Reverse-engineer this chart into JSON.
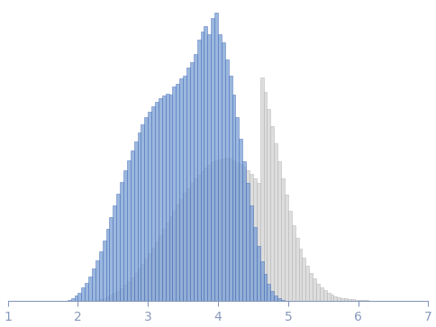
{
  "blue_bin_edges": [
    1.8,
    1.85,
    1.9,
    1.95,
    2.0,
    2.05,
    2.1,
    2.15,
    2.2,
    2.25,
    2.3,
    2.35,
    2.4,
    2.45,
    2.5,
    2.55,
    2.6,
    2.65,
    2.7,
    2.75,
    2.8,
    2.85,
    2.9,
    2.95,
    3.0,
    3.05,
    3.1,
    3.15,
    3.2,
    3.25,
    3.3,
    3.35,
    3.4,
    3.45,
    3.5,
    3.55,
    3.6,
    3.65,
    3.7,
    3.75,
    3.8,
    3.85,
    3.9,
    3.95,
    4.0,
    4.05,
    4.1,
    4.15,
    4.2,
    4.25,
    4.3,
    4.35,
    4.4,
    4.45,
    4.5,
    4.55,
    4.6,
    4.65,
    4.7,
    4.75,
    4.8,
    4.85,
    4.9,
    4.95
  ],
  "blue_heights": [
    3,
    6,
    12,
    20,
    32,
    50,
    68,
    90,
    118,
    148,
    182,
    220,
    262,
    305,
    348,
    392,
    435,
    475,
    512,
    548,
    582,
    614,
    642,
    668,
    690,
    710,
    726,
    738,
    748,
    755,
    750,
    780,
    790,
    810,
    820,
    850,
    870,
    900,
    950,
    980,
    1000,
    970,
    1030,
    1050,
    970,
    940,
    880,
    820,
    750,
    670,
    590,
    510,
    430,
    350,
    270,
    200,
    145,
    100,
    65,
    38,
    22,
    12,
    6,
    2
  ],
  "gray_bin_edges": [
    2.1,
    2.15,
    2.2,
    2.25,
    2.3,
    2.35,
    2.4,
    2.45,
    2.5,
    2.55,
    2.6,
    2.65,
    2.7,
    2.75,
    2.8,
    2.85,
    2.9,
    2.95,
    3.0,
    3.05,
    3.1,
    3.15,
    3.2,
    3.25,
    3.3,
    3.35,
    3.4,
    3.45,
    3.5,
    3.55,
    3.6,
    3.65,
    3.7,
    3.75,
    3.8,
    3.85,
    3.9,
    3.95,
    4.0,
    4.05,
    4.1,
    4.15,
    4.2,
    4.25,
    4.3,
    4.35,
    4.4,
    4.45,
    4.5,
    4.55,
    4.6,
    4.65,
    4.7,
    4.75,
    4.8,
    4.85,
    4.9,
    4.95,
    5.0,
    5.05,
    5.1,
    5.15,
    5.2,
    5.25,
    5.3,
    5.35,
    5.4,
    5.45,
    5.5,
    5.55,
    5.6,
    5.65,
    5.7,
    5.75,
    5.8,
    5.85,
    5.9,
    5.95,
    6.0,
    6.05,
    6.1,
    6.15,
    6.2,
    6.25,
    6.3,
    6.35,
    6.4,
    6.45,
    6.5,
    6.55,
    6.6,
    6.65,
    6.7,
    6.75,
    6.8,
    6.85,
    6.9
  ],
  "gray_heights": [
    1,
    2,
    3,
    5,
    8,
    12,
    17,
    23,
    30,
    38,
    48,
    60,
    72,
    86,
    102,
    118,
    136,
    155,
    175,
    196,
    218,
    240,
    262,
    285,
    308,
    330,
    352,
    373,
    393,
    412,
    430,
    446,
    460,
    474,
    486,
    496,
    505,
    512,
    517,
    520,
    521,
    518,
    513,
    507,
    498,
    488,
    476,
    462,
    447,
    430,
    812,
    760,
    700,
    638,
    574,
    510,
    448,
    388,
    330,
    278,
    232,
    192,
    158,
    128,
    103,
    82,
    65,
    51,
    40,
    31,
    24,
    19,
    15,
    12,
    10,
    8,
    7,
    6,
    5,
    4,
    4,
    3,
    3,
    2,
    2,
    2,
    1,
    1,
    1,
    1,
    1,
    1,
    1,
    1,
    1,
    1,
    0
  ],
  "bin_width": 0.05,
  "xlim": [
    1,
    7
  ],
  "xticks": [
    1,
    2,
    3,
    4,
    5,
    6,
    7
  ],
  "blue_facecolor": "#7a9fd4",
  "blue_edgecolor": "#3a65b5",
  "gray_facecolor": "#d5d5d5",
  "gray_edgecolor": "#b0b0b0",
  "blue_alpha": 0.75,
  "gray_alpha": 0.8,
  "axis_color": "#8899bb",
  "tick_color": "#8899bb",
  "spine_linewidth": 0.8,
  "figsize": [
    4.84,
    3.63
  ],
  "dpi": 100
}
